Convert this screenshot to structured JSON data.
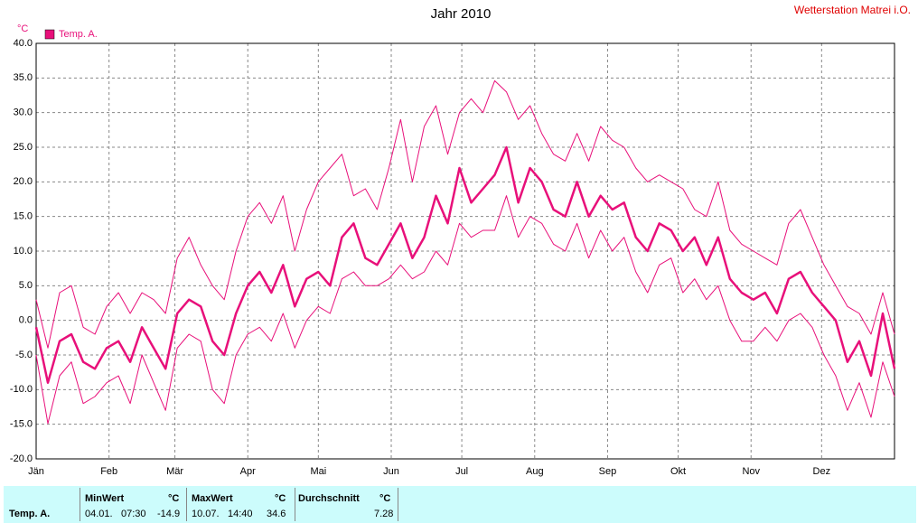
{
  "chart_data": {
    "type": "line",
    "title": "Jahr 2010",
    "station": "Wetterstation Matrei i.O.",
    "y_unit": "°C",
    "legend": "top-left",
    "grid": true,
    "x": [
      0,
      5,
      10,
      15,
      20,
      25,
      30,
      35,
      40,
      45,
      50,
      55,
      60,
      65,
      70,
      75,
      80,
      85,
      90,
      95,
      100,
      105,
      110,
      115,
      120,
      125,
      130,
      135,
      140,
      145,
      150,
      155,
      160,
      165,
      170,
      175,
      180,
      185,
      190,
      195,
      200,
      205,
      210,
      215,
      220,
      225,
      230,
      235,
      240,
      245,
      250,
      255,
      260,
      265,
      270,
      275,
      280,
      285,
      290,
      295,
      300,
      305,
      310,
      315,
      320,
      325,
      330,
      335,
      340,
      345,
      350,
      355,
      360,
      365
    ],
    "xlim": [
      0,
      365
    ],
    "xticks": [
      {
        "value": 0,
        "label": "Jän"
      },
      {
        "value": 31,
        "label": "Feb"
      },
      {
        "value": 59,
        "label": "Mär"
      },
      {
        "value": 90,
        "label": "Apr"
      },
      {
        "value": 120,
        "label": "Mai"
      },
      {
        "value": 151,
        "label": "Jun"
      },
      {
        "value": 181,
        "label": "Jul"
      },
      {
        "value": 212,
        "label": "Aug"
      },
      {
        "value": 243,
        "label": "Sep"
      },
      {
        "value": 273,
        "label": "Okt"
      },
      {
        "value": 304,
        "label": "Nov"
      },
      {
        "value": 334,
        "label": "Dez"
      }
    ],
    "ylim": [
      -20,
      40
    ],
    "yticks": [
      {
        "value": 40,
        "label": "40.0"
      },
      {
        "value": 35,
        "label": "35.0"
      },
      {
        "value": 30,
        "label": "30.0"
      },
      {
        "value": 25,
        "label": "25.0"
      },
      {
        "value": 20,
        "label": "20.0"
      },
      {
        "value": 15,
        "label": "15.0"
      },
      {
        "value": 10,
        "label": "10.0"
      },
      {
        "value": 5,
        "label": "5.0"
      },
      {
        "value": 0,
        "label": "0.0"
      },
      {
        "value": -5,
        "label": "-5.0"
      },
      {
        "value": -10,
        "label": "-10.0"
      },
      {
        "value": -15,
        "label": "-15.0"
      },
      {
        "value": -20,
        "label": "-20.0"
      }
    ],
    "series": [
      {
        "name": "Temp. A.",
        "color": "#e8107a",
        "width": 2.5,
        "values": [
          -1,
          -9,
          -3,
          -2,
          -6,
          -7,
          -4,
          -3,
          -6,
          -1,
          -4,
          -7,
          1,
          3,
          2,
          -3,
          -5,
          1,
          5,
          7,
          4,
          8,
          2,
          6,
          7,
          5,
          12,
          14,
          9,
          8,
          11,
          14,
          9,
          12,
          18,
          14,
          22,
          17,
          19,
          21,
          25,
          17,
          22,
          20,
          16,
          15,
          20,
          15,
          18,
          16,
          17,
          12,
          10,
          14,
          13,
          10,
          12,
          8,
          12,
          6,
          4,
          3,
          4,
          1,
          6,
          7,
          4,
          2,
          0,
          -6,
          -3,
          -8,
          1,
          -7
        ]
      },
      {
        "color": "#e8107a",
        "width": 1,
        "values": [
          3,
          -4,
          4,
          5,
          -1,
          -2,
          2,
          4,
          1,
          4,
          3,
          1,
          9,
          12,
          8,
          5,
          3,
          10,
          15,
          17,
          14,
          18,
          10,
          16,
          20,
          22,
          24,
          18,
          19,
          16,
          22,
          29,
          20,
          28,
          31,
          24,
          30,
          32,
          30,
          34.6,
          33,
          29,
          31,
          27,
          24,
          23,
          27,
          23,
          28,
          26,
          25,
          22,
          20,
          21,
          20,
          19,
          16,
          15,
          20,
          13,
          11,
          10,
          9,
          8,
          14,
          16,
          12,
          8,
          5,
          2,
          1,
          -2,
          4,
          -2
        ]
      },
      {
        "color": "#e8107a",
        "width": 1,
        "values": [
          -5,
          -14.9,
          -8,
          -6,
          -12,
          -11,
          -9,
          -8,
          -12,
          -5,
          -9,
          -13,
          -4,
          -2,
          -3,
          -10,
          -12,
          -5,
          -2,
          -1,
          -3,
          1,
          -4,
          0,
          2,
          1,
          6,
          7,
          5,
          5,
          6,
          8,
          6,
          7,
          10,
          8,
          14,
          12,
          13,
          13,
          18,
          12,
          15,
          14,
          11,
          10,
          14,
          9,
          13,
          10,
          12,
          7,
          4,
          8,
          9,
          4,
          6,
          3,
          5,
          0,
          -3,
          -3,
          -1,
          -3,
          0,
          1,
          -1,
          -5,
          -8,
          -13,
          -9,
          -14,
          -6,
          -11
        ]
      }
    ]
  },
  "table": {
    "row_label": "Temp. A.",
    "min": {
      "header": "MinWert",
      "unit": "°C",
      "date": "04.01.",
      "time": "07:30",
      "value": -14.9
    },
    "max": {
      "header": "MaxWert",
      "unit": "°C",
      "date": "10.07.",
      "time": "14:40",
      "value": 34.6
    },
    "avg": {
      "header": "Durchschnitt",
      "unit": "°C",
      "value": 7.28
    }
  }
}
